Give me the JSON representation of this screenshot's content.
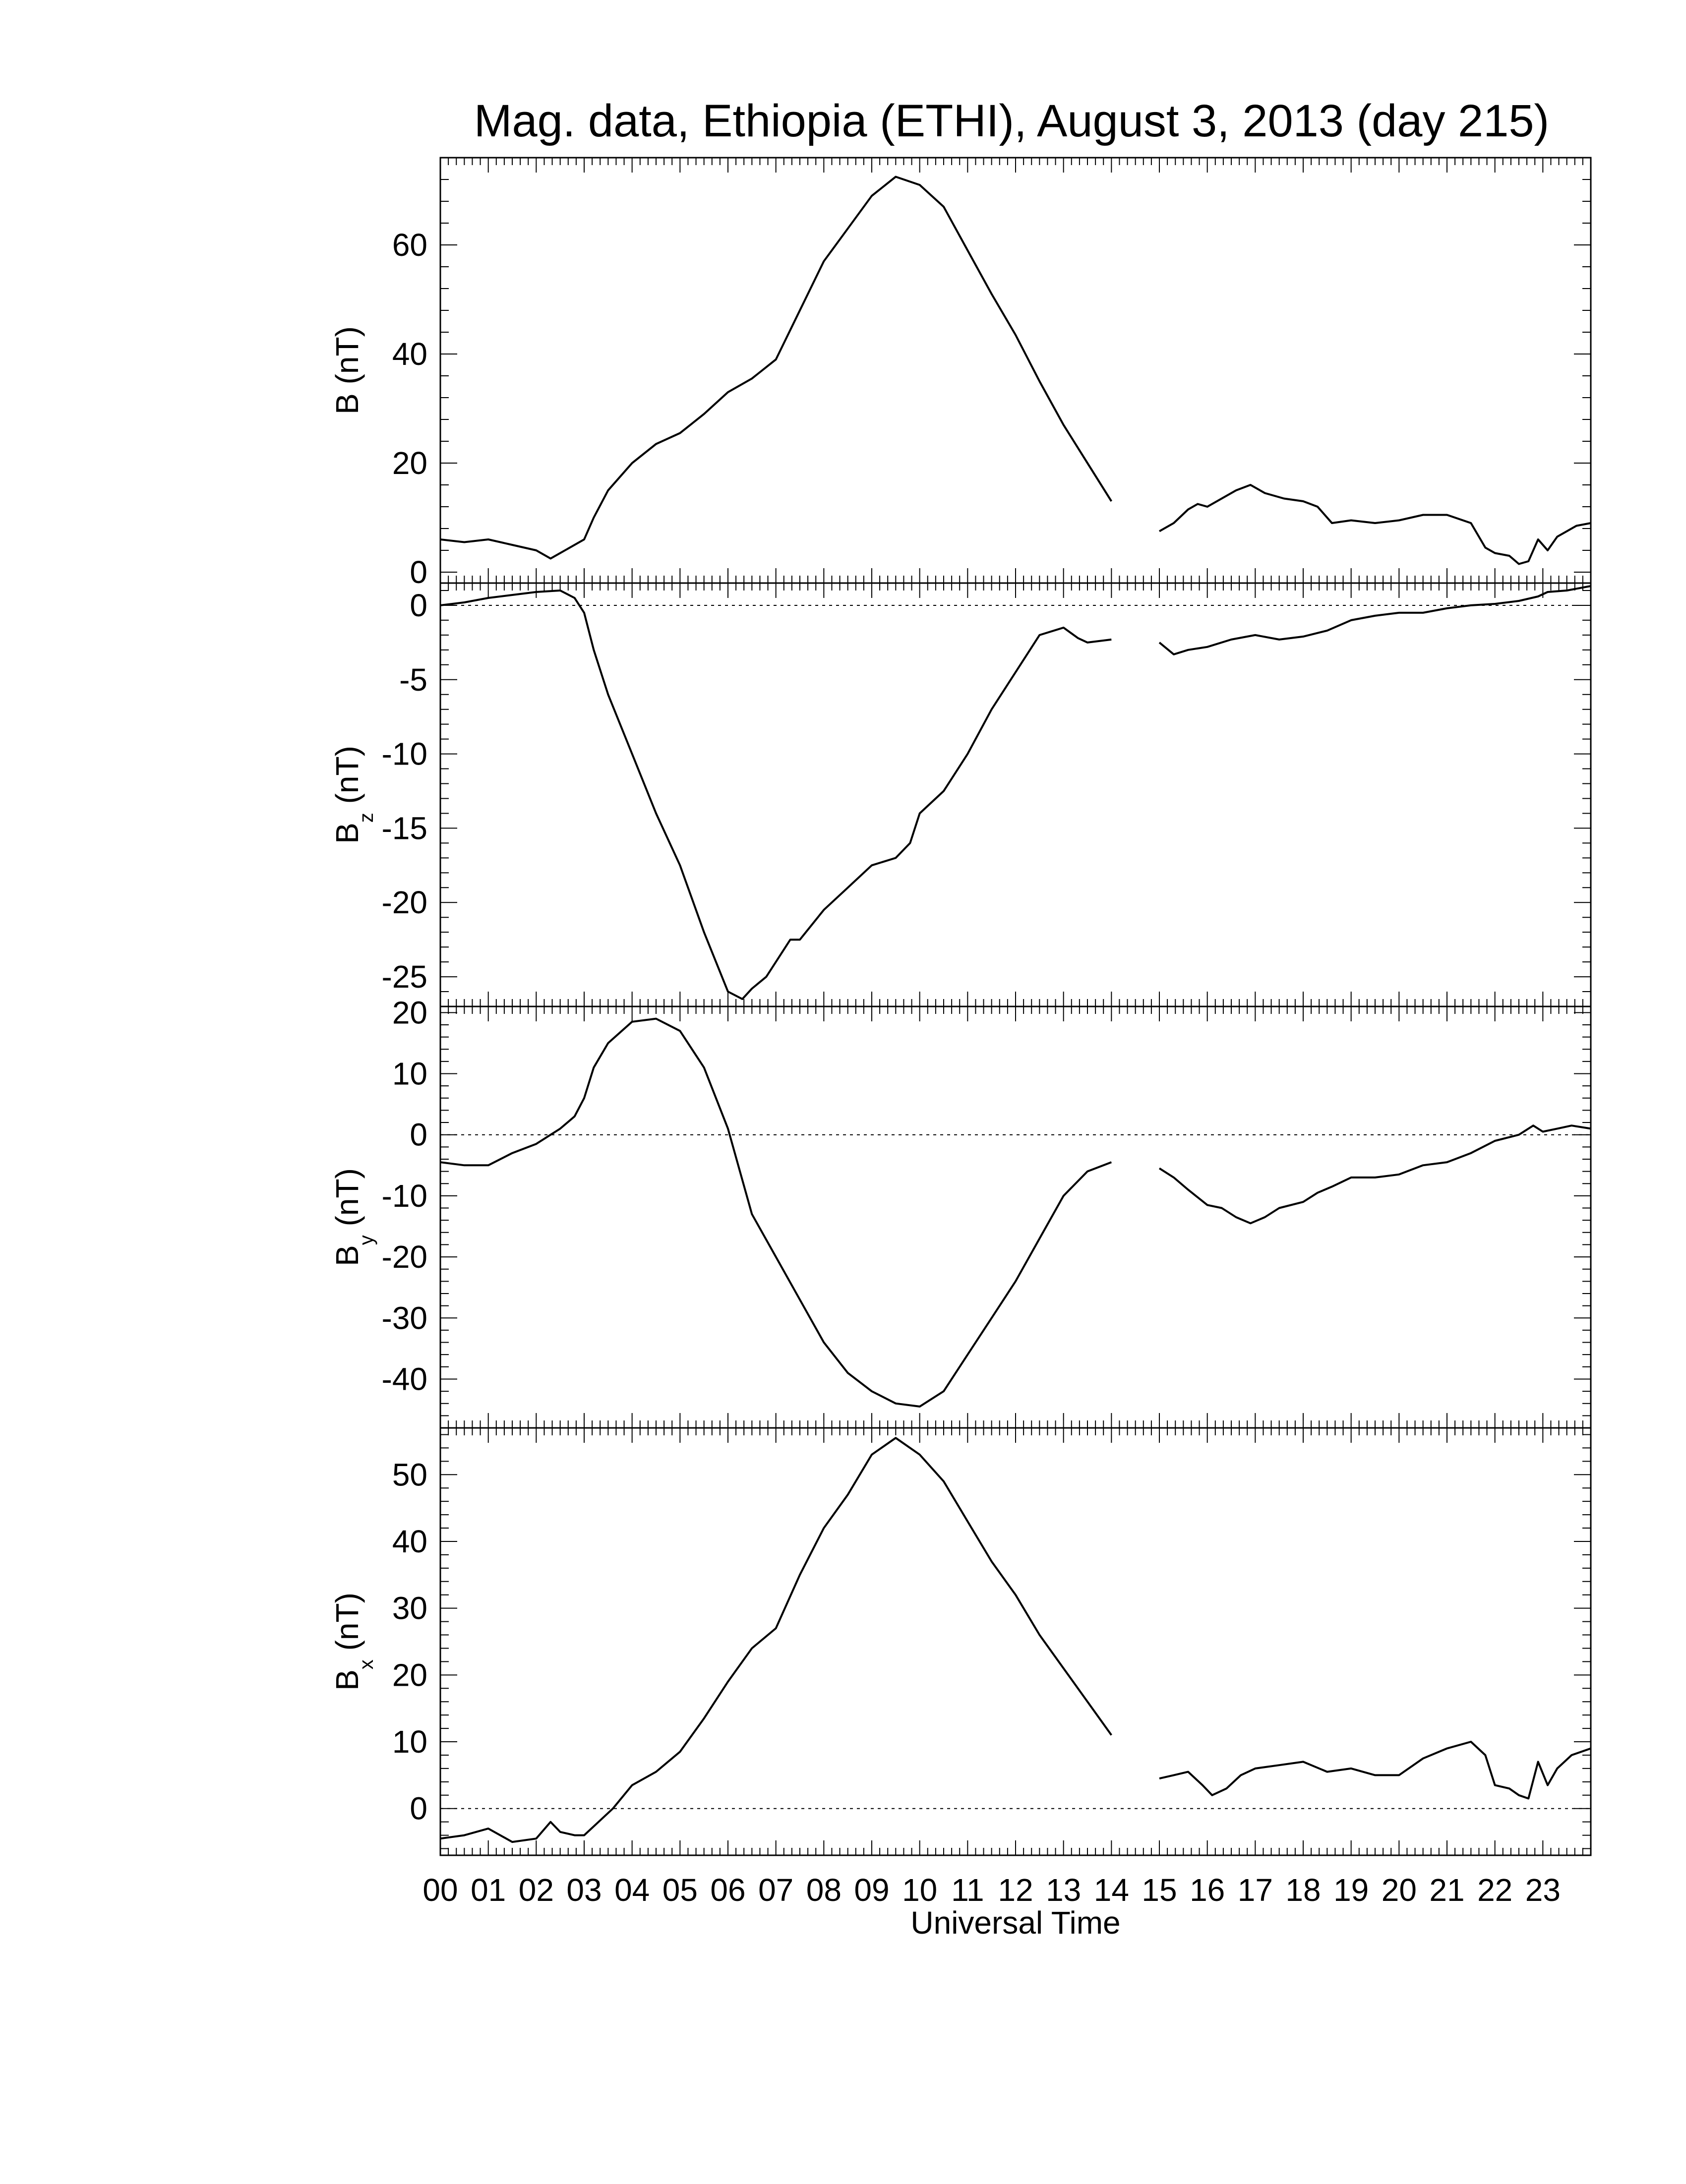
{
  "title": "Mag. data, Ethiopia (ETHI), August 3, 2013 (day 215)",
  "x_axis": {
    "label": "Universal Time",
    "tick_labels": [
      "00",
      "01",
      "02",
      "03",
      "04",
      "05",
      "06",
      "07",
      "08",
      "09",
      "10",
      "11",
      "12",
      "13",
      "14",
      "15",
      "16",
      "17",
      "18",
      "19",
      "20",
      "21",
      "22",
      "23"
    ]
  },
  "panels": [
    {
      "id": "B",
      "ylabel_main": "B",
      "ylabel_sub": "",
      "ylabel_unit": "(nT)"
    },
    {
      "id": "Bz",
      "ylabel_main": "B",
      "ylabel_sub": "z",
      "ylabel_unit": "(nT)"
    },
    {
      "id": "By",
      "ylabel_main": "B",
      "ylabel_sub": "y",
      "ylabel_unit": "(nT)"
    },
    {
      "id": "Bx",
      "ylabel_main": "B",
      "ylabel_sub": "x",
      "ylabel_unit": "(nT)"
    }
  ],
  "chart_data": [
    {
      "type": "line",
      "name": "B (nT)",
      "ylabel": "B (nT)",
      "xlabel": "Universal Time",
      "xlim": [
        0,
        24
      ],
      "ylim": [
        -2,
        76
      ],
      "yticks": [
        0,
        20,
        40,
        60
      ],
      "zero_line": false,
      "series": [
        {
          "segment": 1,
          "x": [
            0,
            0.5,
            1,
            1.5,
            2,
            2.3,
            2.5,
            2.8,
            3.0,
            3.2,
            3.5,
            4.0,
            4.5,
            5.0,
            5.5,
            6.0,
            6.5,
            7.0,
            7.5,
            8.0,
            8.5,
            9.0,
            9.5,
            10.0,
            10.5,
            11.0,
            11.5,
            12.0,
            12.5,
            13.0,
            13.5,
            14.0
          ],
          "y": [
            6,
            5.5,
            6,
            5,
            4,
            2.5,
            3.5,
            5,
            6,
            10,
            15,
            20,
            23.5,
            25.5,
            29,
            33,
            35.5,
            39,
            48,
            57,
            63,
            69,
            72.5,
            71,
            67,
            59,
            51,
            43.5,
            35,
            27,
            20,
            13
          ]
        },
        {
          "segment": 2,
          "x": [
            15.0,
            15.3,
            15.6,
            15.8,
            16.0,
            16.3,
            16.6,
            16.9,
            17.2,
            17.6,
            18.0,
            18.3,
            18.6,
            19.0,
            19.5,
            20.0,
            20.5,
            21.0,
            21.5,
            21.8,
            22.0,
            22.3,
            22.5,
            22.7,
            22.9,
            23.1,
            23.3,
            23.5,
            23.7,
            24.0
          ],
          "y": [
            7.5,
            9,
            11.5,
            12.5,
            12,
            13.5,
            15,
            16,
            14.5,
            13.5,
            13,
            12,
            9,
            9.5,
            9,
            9.5,
            10.5,
            10.5,
            9,
            4.5,
            3.5,
            3,
            1.5,
            2,
            6,
            4,
            6.5,
            7.5,
            8.5,
            9
          ]
        }
      ]
    },
    {
      "type": "line",
      "name": "Bz (nT)",
      "ylabel": "Bz (nT)",
      "xlabel": "Universal Time",
      "xlim": [
        0,
        24
      ],
      "ylim": [
        -27,
        1.5
      ],
      "yticks": [
        0,
        -5,
        -10,
        -15,
        -20,
        -25
      ],
      "zero_line": true,
      "series": [
        {
          "segment": 1,
          "x": [
            0,
            0.5,
            1,
            1.5,
            2,
            2.5,
            2.8,
            3.0,
            3.2,
            3.5,
            4.0,
            4.5,
            5.0,
            5.5,
            6.0,
            6.3,
            6.5,
            6.8,
            7.0,
            7.3,
            7.5,
            8.0,
            8.5,
            9.0,
            9.5,
            9.8,
            10.0,
            10.5,
            11.0,
            11.5,
            12.0,
            12.5,
            13.0,
            13.3,
            13.5,
            14.0
          ],
          "y": [
            0,
            0.2,
            0.5,
            0.7,
            0.9,
            1.0,
            0.5,
            -0.5,
            -3,
            -6,
            -10,
            -14,
            -17.5,
            -22,
            -26,
            -26.5,
            -25.8,
            -25,
            -24,
            -22.5,
            -22.5,
            -20.5,
            -19,
            -17.5,
            -17,
            -16,
            -14,
            -12.5,
            -10,
            -7,
            -4.5,
            -2,
            -1.5,
            -2.2,
            -2.5,
            -2.3
          ]
        },
        {
          "segment": 2,
          "x": [
            15.0,
            15.3,
            15.6,
            16.0,
            16.5,
            17.0,
            17.5,
            18.0,
            18.5,
            19.0,
            19.5,
            20.0,
            20.5,
            21.0,
            21.5,
            22.0,
            22.5,
            22.9,
            23.1,
            23.5,
            24.0
          ],
          "y": [
            -2.5,
            -3.3,
            -3.0,
            -2.8,
            -2.3,
            -2.0,
            -2.3,
            -2.1,
            -1.7,
            -1.0,
            -0.7,
            -0.5,
            -0.5,
            -0.2,
            0.0,
            0.1,
            0.3,
            0.6,
            0.9,
            1.0,
            1.3
          ]
        }
      ]
    },
    {
      "type": "line",
      "name": "By (nT)",
      "ylabel": "By (nT)",
      "xlabel": "Universal Time",
      "xlim": [
        0,
        24
      ],
      "ylim": [
        -48,
        21
      ],
      "yticks": [
        20,
        10,
        0,
        -10,
        -20,
        -30,
        -40
      ],
      "zero_line": true,
      "series": [
        {
          "segment": 1,
          "x": [
            0,
            0.5,
            1,
            1.5,
            2,
            2.5,
            2.8,
            3.0,
            3.2,
            3.5,
            4.0,
            4.5,
            5.0,
            5.5,
            6.0,
            6.5,
            7.0,
            7.5,
            8.0,
            8.5,
            9.0,
            9.5,
            10.0,
            10.5,
            11.0,
            11.5,
            12.0,
            12.5,
            13.0,
            13.5,
            14.0
          ],
          "y": [
            -4.5,
            -5,
            -5,
            -3,
            -1.5,
            1,
            3,
            6,
            11,
            15,
            18.5,
            19,
            17,
            11,
            1,
            -13,
            -20,
            -27,
            -34,
            -39,
            -42,
            -44,
            -44.5,
            -42,
            -36,
            -30,
            -24,
            -17,
            -10,
            -6,
            -4.5
          ]
        },
        {
          "segment": 2,
          "x": [
            15.0,
            15.3,
            15.6,
            16.0,
            16.3,
            16.6,
            16.9,
            17.2,
            17.5,
            18.0,
            18.3,
            18.6,
            19.0,
            19.5,
            20.0,
            20.5,
            21.0,
            21.5,
            22.0,
            22.5,
            22.8,
            23.0,
            23.3,
            23.6,
            24.0
          ],
          "y": [
            -5.5,
            -7,
            -9,
            -11.5,
            -12,
            -13.5,
            -14.5,
            -13.5,
            -12,
            -11,
            -9.5,
            -8.5,
            -7,
            -7,
            -6.5,
            -5,
            -4.5,
            -3,
            -1,
            0,
            1.5,
            0.5,
            1,
            1.5,
            1
          ]
        }
      ]
    },
    {
      "type": "line",
      "name": "Bx (nT)",
      "ylabel": "Bx (nT)",
      "xlabel": "Universal Time",
      "xlim": [
        0,
        24
      ],
      "ylim": [
        -7,
        57
      ],
      "yticks": [
        0,
        10,
        20,
        30,
        40,
        50
      ],
      "zero_line": true,
      "series": [
        {
          "segment": 1,
          "x": [
            0,
            0.5,
            1,
            1.5,
            2,
            2.3,
            2.5,
            2.8,
            3.0,
            3.3,
            3.6,
            4.0,
            4.5,
            5.0,
            5.5,
            6.0,
            6.5,
            7.0,
            7.5,
            8.0,
            8.5,
            9.0,
            9.5,
            10.0,
            10.5,
            11.0,
            11.5,
            12.0,
            12.5,
            13.0,
            13.5,
            14.0
          ],
          "y": [
            -4.5,
            -4,
            -3,
            -5,
            -4.5,
            -2,
            -3.5,
            -4,
            -4,
            -2,
            0,
            3.5,
            5.5,
            8.5,
            13.5,
            19,
            24,
            27,
            35,
            42,
            47,
            53,
            55.5,
            53,
            49,
            43,
            37,
            32,
            26,
            21,
            16,
            11
          ]
        },
        {
          "segment": 2,
          "x": [
            15.0,
            15.3,
            15.6,
            15.9,
            16.1,
            16.4,
            16.7,
            17.0,
            17.5,
            18.0,
            18.5,
            19.0,
            19.5,
            20.0,
            20.5,
            21.0,
            21.5,
            21.8,
            22.0,
            22.3,
            22.5,
            22.7,
            22.9,
            23.1,
            23.3,
            23.6,
            24.0
          ],
          "y": [
            4.5,
            5,
            5.5,
            3.5,
            2,
            3,
            5,
            6,
            6.5,
            7,
            5.5,
            6,
            5,
            5,
            7.5,
            9,
            10,
            8,
            3.5,
            3,
            2,
            1.5,
            7,
            3.5,
            6,
            8,
            9
          ]
        }
      ]
    }
  ]
}
